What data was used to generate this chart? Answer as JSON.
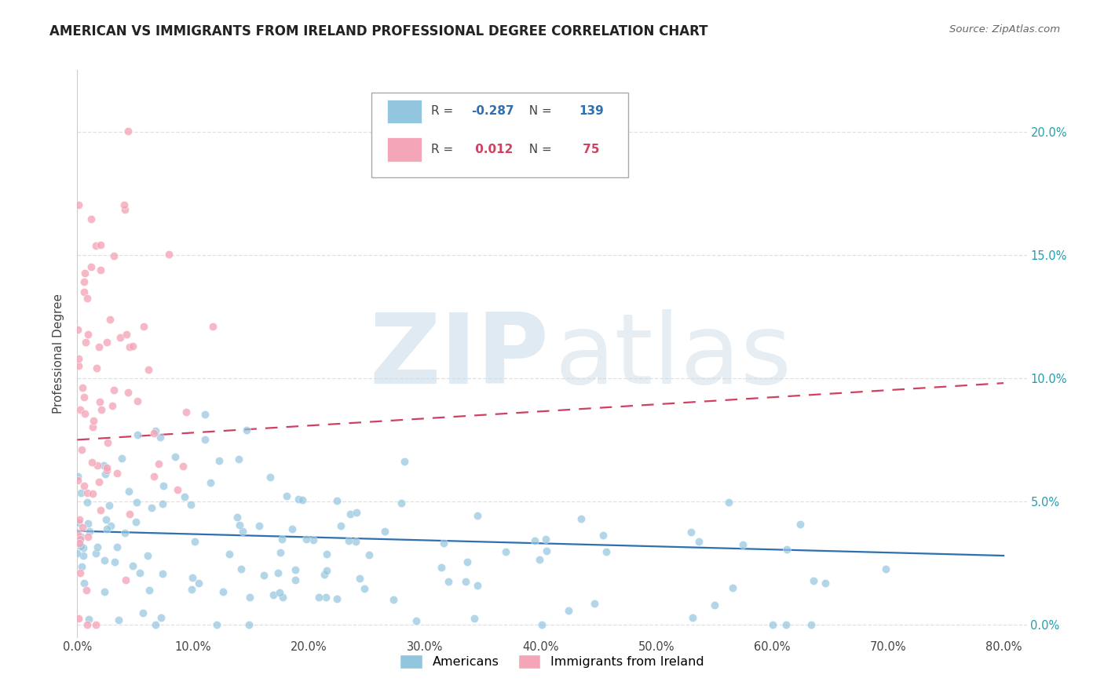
{
  "title": "AMERICAN VS IMMIGRANTS FROM IRELAND PROFESSIONAL DEGREE CORRELATION CHART",
  "source": "Source: ZipAtlas.com",
  "ylabel": "Professional Degree",
  "blue_R": -0.287,
  "blue_N": 139,
  "pink_R": 0.012,
  "pink_N": 75,
  "xlim": [
    0.0,
    0.82
  ],
  "ylim": [
    -0.005,
    0.225
  ],
  "xticks": [
    0.0,
    0.1,
    0.2,
    0.3,
    0.4,
    0.5,
    0.6,
    0.7,
    0.8
  ],
  "yticks": [
    0.0,
    0.05,
    0.1,
    0.15,
    0.2
  ],
  "blue_color": "#92c5de",
  "pink_color": "#f4a6b8",
  "blue_line_color": "#3070b0",
  "pink_line_color": "#d04060",
  "watermark_zip": "ZIP",
  "watermark_atlas": "atlas",
  "background_color": "#ffffff",
  "grid_color": "#e0e0e0",
  "right_tick_color": "#20a0b0",
  "title_fontsize": 12,
  "axis_fontsize": 11,
  "tick_fontsize": 10.5,
  "blue_trend_start": 0.038,
  "blue_trend_end": 0.028,
  "pink_trend_start": 0.075,
  "pink_trend_end": 0.098
}
